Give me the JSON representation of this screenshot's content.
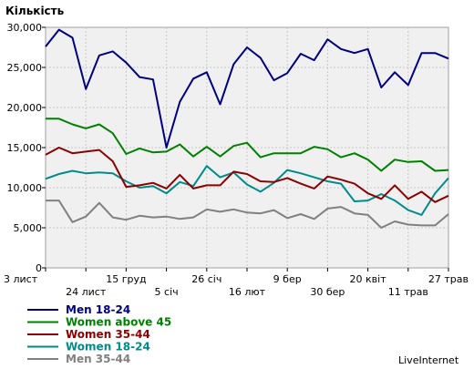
{
  "chart_data": {
    "type": "line",
    "title": "Кількість",
    "ylim": [
      0,
      30000
    ],
    "yticks": [
      0,
      5000,
      10000,
      15000,
      20000,
      25000,
      30000
    ],
    "ytick_labels": [
      "0",
      "5,000",
      "10,000",
      "15,000",
      "20,000",
      "25,000",
      "30,000"
    ],
    "grid": true,
    "legend_position": "bottom-left",
    "x_tick_labels": [
      {
        "label": "3 лист",
        "index": 0,
        "row": 1
      },
      {
        "label": "24 лист",
        "index": 3,
        "row": 2
      },
      {
        "label": "15 груд",
        "index": 6,
        "row": 1
      },
      {
        "label": "5 січ",
        "index": 9,
        "row": 2
      },
      {
        "label": "26 січ",
        "index": 12,
        "row": 1
      },
      {
        "label": "16 лют",
        "index": 15,
        "row": 2
      },
      {
        "label": "9 бер",
        "index": 18,
        "row": 1
      },
      {
        "label": "30 бер",
        "index": 21,
        "row": 2
      },
      {
        "label": "20 квіт",
        "index": 24,
        "row": 1
      },
      {
        "label": "11 трав",
        "index": 27,
        "row": 2
      },
      {
        "label": "27 трав",
        "index": 30,
        "row": 1
      }
    ],
    "series": [
      {
        "name": "Men 18-24",
        "color": "#000080",
        "values": [
          27600,
          29700,
          28700,
          22300,
          26500,
          27000,
          25600,
          23800,
          23500,
          15000,
          20700,
          23600,
          24400,
          20400,
          25400,
          27500,
          26200,
          23400,
          24300,
          26700,
          25900,
          28500,
          27300,
          26800,
          27300,
          22500,
          24400,
          22800,
          26800,
          26800,
          26100
        ]
      },
      {
        "name": "Women above 45",
        "color": "#008000",
        "values": [
          18600,
          18600,
          17900,
          17400,
          17900,
          16800,
          14200,
          14900,
          14400,
          14500,
          15400,
          13900,
          15100,
          13900,
          15200,
          15600,
          13800,
          14300,
          14300,
          14300,
          15100,
          14800,
          13800,
          14300,
          13500,
          12100,
          13500,
          13200,
          13300,
          12100,
          12200
        ]
      },
      {
        "name": "Women 35-44",
        "color": "#8b0000",
        "values": [
          14100,
          15000,
          14300,
          14500,
          14700,
          13300,
          10100,
          10300,
          10600,
          9900,
          11600,
          9900,
          10300,
          10300,
          12000,
          11700,
          10800,
          10700,
          11200,
          10500,
          9900,
          11400,
          11000,
          10500,
          9300,
          8600,
          10300,
          8600,
          9500,
          8200,
          9000
        ]
      },
      {
        "name": "Women 18-24",
        "color": "#008b8b",
        "values": [
          11100,
          11700,
          12100,
          11800,
          11900,
          11800,
          10800,
          10000,
          10200,
          9300,
          10700,
          10200,
          12700,
          11300,
          11900,
          10400,
          9500,
          10600,
          12200,
          11800,
          11300,
          10800,
          10500,
          8300,
          8400,
          9200,
          8400,
          7200,
          6600,
          9300,
          11200
        ]
      },
      {
        "name": "Men 35-44",
        "color": "#808080",
        "values": [
          8400,
          8400,
          5700,
          6400,
          8100,
          6300,
          6000,
          6500,
          6300,
          6400,
          6100,
          6300,
          7300,
          7000,
          7300,
          6900,
          6800,
          7200,
          6200,
          6700,
          6100,
          7400,
          7600,
          6800,
          6600,
          5000,
          5800,
          5400,
          5300,
          5300,
          6700
        ]
      }
    ]
  },
  "brand": "LiveInternet"
}
